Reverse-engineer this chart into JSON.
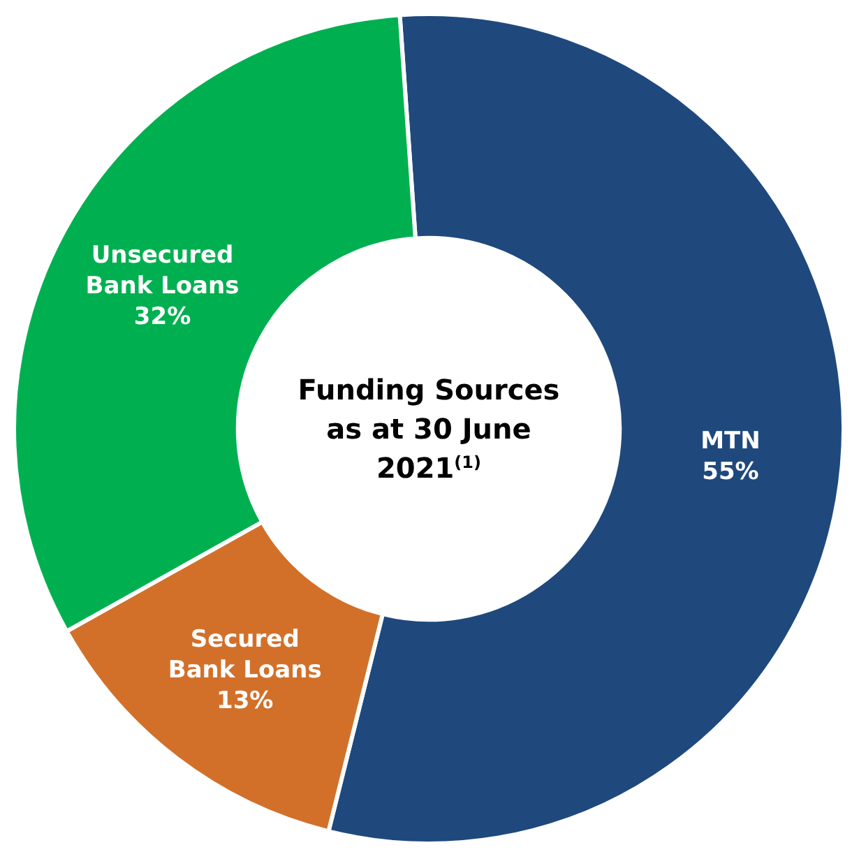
{
  "chart_data": {
    "type": "donut",
    "title": "Funding Sources as at 30 June 2021$^{(1)}$",
    "categories": [
      "MTN",
      "Secured Bank Loans",
      "Unsecured Bank Loans"
    ],
    "values": [
      55,
      13,
      32
    ],
    "colors": [
      "#1f497d",
      "#d2702a",
      "#00b050"
    ],
    "value_labels": [
      "55%",
      "13%",
      "32%"
    ]
  }
}
